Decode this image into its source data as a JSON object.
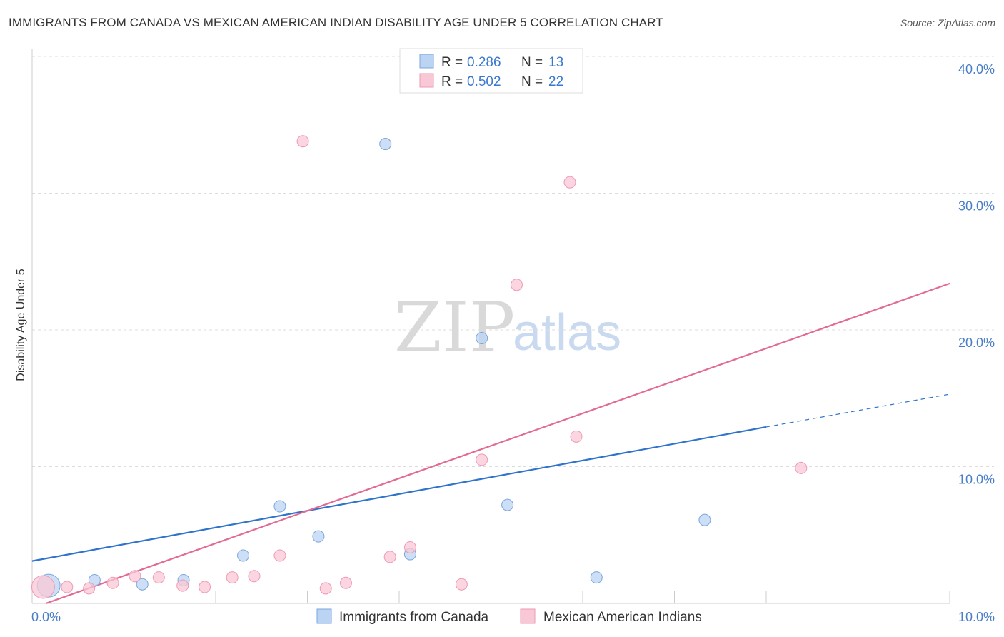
{
  "title": "IMMIGRANTS FROM CANADA VS MEXICAN AMERICAN INDIAN DISABILITY AGE UNDER 5 CORRELATION CHART",
  "source": "Source: ZipAtlas.com",
  "watermark": {
    "zip": "ZIP",
    "atlas": "atlas"
  },
  "colors": {
    "blue_fill": "#bcd4f4",
    "blue_stroke": "#7aa6dc",
    "blue_line": "#2f74cc",
    "pink_fill": "#f9c8d6",
    "pink_stroke": "#ee9ab4",
    "pink_line": "#e26a94",
    "grid": "#dcdcdc",
    "tick_text": "#4a7fc7"
  },
  "legend": {
    "rows": [
      {
        "r_label": "R = ",
        "r_value": "0.286",
        "n_label": "N = ",
        "n_value": "13",
        "series": "blue"
      },
      {
        "r_label": "R = ",
        "r_value": "0.502",
        "n_label": "N = ",
        "n_value": "22",
        "series": "pink"
      }
    ]
  },
  "chart_data": {
    "type": "scatter",
    "title": "IMMIGRANTS FROM CANADA VS MEXICAN AMERICAN INDIAN DISABILITY AGE UNDER 5 CORRELATION CHART",
    "xlabel": "",
    "ylabel": "Disability Age Under 5",
    "xlim": [
      0,
      10
    ],
    "ylim": [
      0,
      40
    ],
    "x_tick_labels": [
      {
        "value": 0,
        "label": "0.0%"
      },
      {
        "value": 10,
        "label": "10.0%"
      }
    ],
    "y_tick_labels": [
      {
        "value": 10,
        "label": "10.0%"
      },
      {
        "value": 20,
        "label": "20.0%"
      },
      {
        "value": 30,
        "label": "30.0%"
      },
      {
        "value": 40,
        "label": "40.0%"
      }
    ],
    "series": [
      {
        "name": "Immigrants from Canada",
        "color": "blue",
        "points": [
          {
            "x": 0.18,
            "y": 1.3,
            "size": "large"
          },
          {
            "x": 0.68,
            "y": 1.7
          },
          {
            "x": 1.2,
            "y": 1.4
          },
          {
            "x": 1.65,
            "y": 1.7
          },
          {
            "x": 2.3,
            "y": 3.5
          },
          {
            "x": 2.7,
            "y": 7.1
          },
          {
            "x": 3.12,
            "y": 4.9
          },
          {
            "x": 3.85,
            "y": 33.6
          },
          {
            "x": 4.12,
            "y": 3.6
          },
          {
            "x": 4.9,
            "y": 19.4
          },
          {
            "x": 5.18,
            "y": 7.2
          },
          {
            "x": 6.15,
            "y": 1.9
          },
          {
            "x": 7.33,
            "y": 6.1
          }
        ],
        "trend": {
          "x0": 0,
          "y0": 3.1,
          "x1": 8.0,
          "y1": 12.9,
          "dashed_to_x": 10.0,
          "dashed_to_y": 15.3
        }
      },
      {
        "name": "Mexican American Indians",
        "color": "pink",
        "points": [
          {
            "x": 0.12,
            "y": 1.2,
            "size": "large"
          },
          {
            "x": 0.38,
            "y": 1.2
          },
          {
            "x": 0.62,
            "y": 1.1
          },
          {
            "x": 0.88,
            "y": 1.5
          },
          {
            "x": 1.12,
            "y": 2.0
          },
          {
            "x": 1.38,
            "y": 1.9
          },
          {
            "x": 1.64,
            "y": 1.3
          },
          {
            "x": 1.88,
            "y": 1.2
          },
          {
            "x": 2.18,
            "y": 1.9
          },
          {
            "x": 2.42,
            "y": 2.0
          },
          {
            "x": 2.7,
            "y": 3.5
          },
          {
            "x": 2.95,
            "y": 33.8
          },
          {
            "x": 3.2,
            "y": 1.1
          },
          {
            "x": 3.42,
            "y": 1.5
          },
          {
            "x": 3.9,
            "y": 3.4
          },
          {
            "x": 4.12,
            "y": 4.1
          },
          {
            "x": 4.68,
            "y": 1.4
          },
          {
            "x": 4.9,
            "y": 10.5
          },
          {
            "x": 5.28,
            "y": 23.3
          },
          {
            "x": 5.86,
            "y": 30.8
          },
          {
            "x": 5.93,
            "y": 12.2
          },
          {
            "x": 8.38,
            "y": 9.9
          }
        ],
        "trend": {
          "x0": 0.15,
          "y0": 0.0,
          "x1": 10.0,
          "y1": 23.4
        }
      }
    ],
    "legend_position": "top-center",
    "grid": true
  },
  "bottom_legend": [
    {
      "label": "Immigrants from Canada",
      "series": "blue"
    },
    {
      "label": "Mexican American Indians",
      "series": "pink"
    }
  ]
}
